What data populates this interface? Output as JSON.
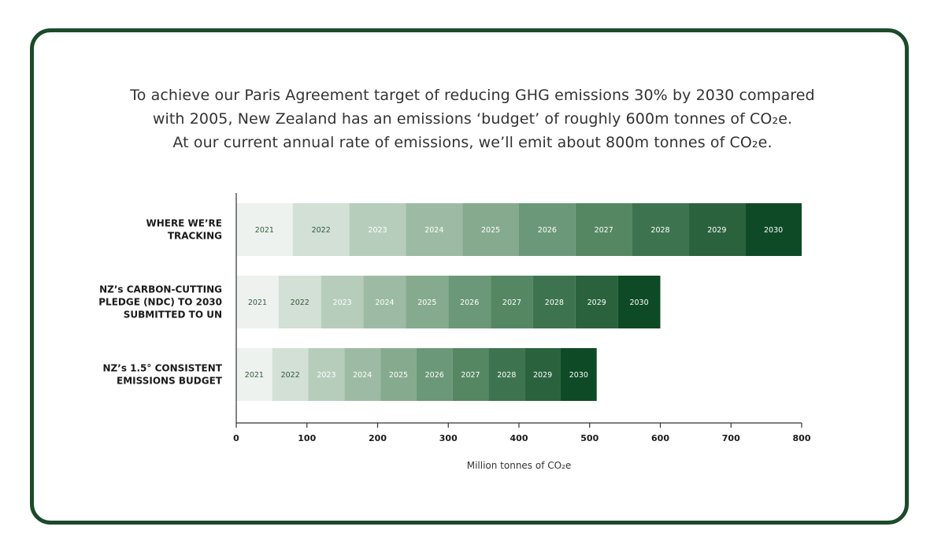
{
  "headline": {
    "line1": "To achieve our Paris Agreement target of reducing GHG emissions 30% by 2030 compared",
    "line2": "with 2005, New Zealand has an emissions ‘budget’ of roughly 600m tonnes of CO₂e.",
    "line3": "At our current annual rate of emissions, we’ll emit about 800m tonnes of CO₂e."
  },
  "colors": {
    "frame": "#1c4a2a",
    "segments": [
      "#eef2ee",
      "#d2e0d5",
      "#b6cdbb",
      "#9dbba4",
      "#86aa8e",
      "#6b9878",
      "#558763",
      "#3d744f",
      "#2a623e",
      "#0e4a26"
    ],
    "segment_text_dark": "#335a3d",
    "segment_text_light": "#ffffff"
  },
  "chart_data": {
    "type": "bar",
    "orientation": "horizontal",
    "stacked": true,
    "xlabel": "Million tonnes of CO₂e",
    "xlim": [
      0,
      800
    ],
    "xticks": [
      "0",
      "100",
      "200",
      "300",
      "400",
      "500",
      "600",
      "700",
      "800"
    ],
    "series_names": [
      "2021",
      "2022",
      "2023",
      "2024",
      "2025",
      "2026",
      "2027",
      "2028",
      "2029",
      "2030"
    ],
    "bars": [
      {
        "label_lines": [
          "WHERE WE’RE",
          "TRACKING"
        ],
        "values": [
          80,
          80,
          80,
          80,
          80,
          80,
          80,
          80,
          80,
          80
        ],
        "total": 800
      },
      {
        "label_lines": [
          "NZ’s CARBON-CUTTING",
          "PLEDGE  (NDC) TO 2030",
          "SUBMITTED TO UN"
        ],
        "values": [
          60,
          60,
          60,
          60,
          60,
          60,
          60,
          60,
          60,
          60
        ],
        "total": 600
      },
      {
        "label_lines": [
          "NZ’s 1.5° CONSISTENT",
          "EMISSIONS BUDGET"
        ],
        "values": [
          51,
          51,
          51,
          51,
          51,
          51,
          51,
          51,
          51,
          51
        ],
        "total": 510
      }
    ],
    "grid": false,
    "legend": "none"
  }
}
